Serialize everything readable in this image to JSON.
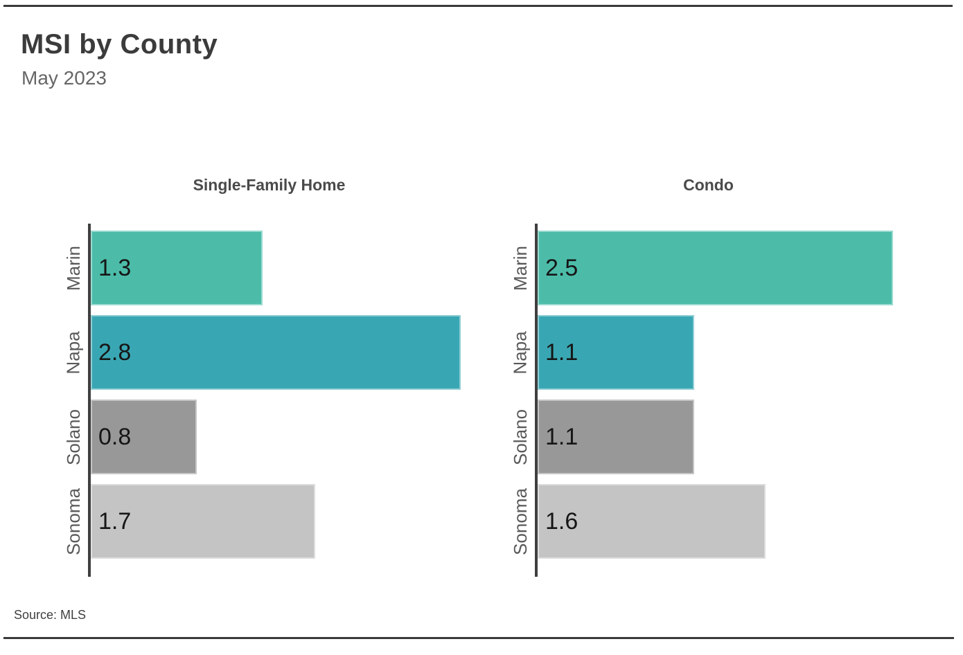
{
  "header": {
    "title": "MSI by County",
    "subtitle": "May 2023"
  },
  "footer": {
    "source": "Source: MLS"
  },
  "colors": {
    "bar_marin": "#4CBCA9",
    "bar_napa": "#39A7B3",
    "bar_solano": "#989898",
    "bar_sonoma": "#C4C4C4",
    "axis_line": "#3F3F3F",
    "horizontal_rule": "#3A3A3A",
    "title_text": "#3B3B3B",
    "subtitle_text": "#666666",
    "category_label_text": "#595959",
    "value_label_text": "#161616"
  },
  "chart_data": {
    "type": "bar",
    "orientation": "horizontal",
    "title": "MSI by County",
    "subtitle": "May 2023",
    "categories": [
      "Marin",
      "Napa",
      "Solano",
      "Sonoma"
    ],
    "series": [
      {
        "name": "Single-Family Home",
        "values": [
          1.3,
          2.8,
          0.8,
          1.7
        ]
      },
      {
        "name": "Condo",
        "values": [
          2.5,
          1.1,
          1.1,
          1.6
        ]
      }
    ],
    "bar_colors": [
      "#4CBCA9",
      "#39A7B3",
      "#989898",
      "#C4C4C4"
    ],
    "value_labels_shown": true,
    "xlim": [
      0,
      3
    ],
    "grid": false,
    "legend": false,
    "source": "Source: MLS"
  }
}
